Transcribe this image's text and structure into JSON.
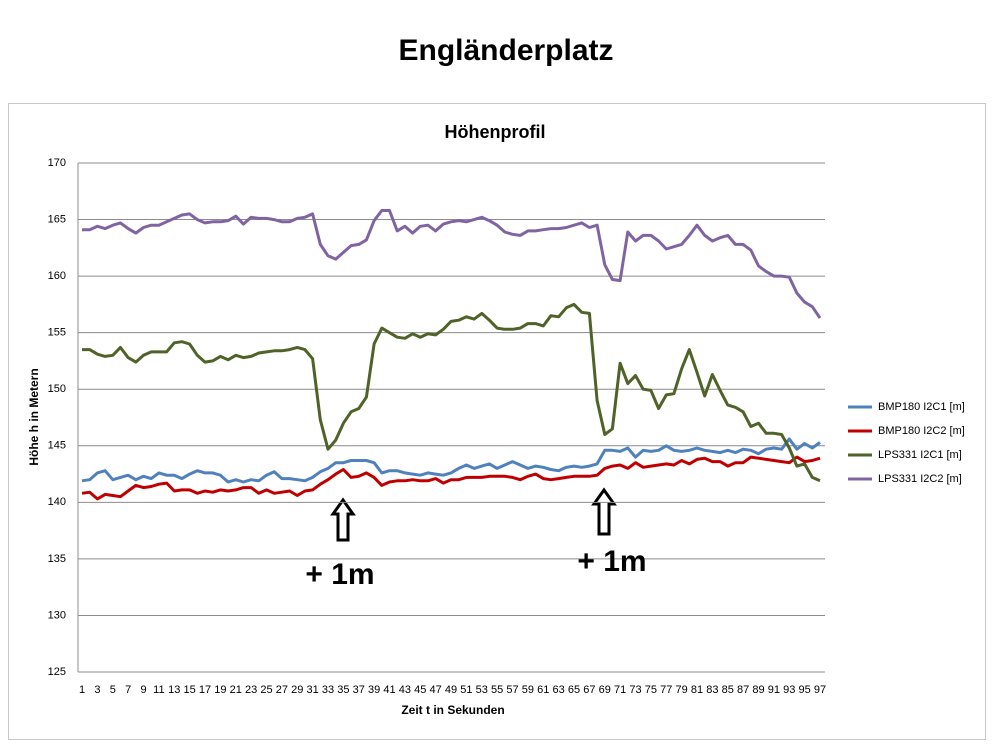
{
  "heading": "Engländerplatz",
  "chart_data": {
    "type": "line",
    "title": "Höhenprofil",
    "x_label": "Zeit t in Sekunden",
    "y_label": "Höhe h in Metern",
    "categories": [
      1,
      null,
      3,
      null,
      5,
      null,
      7,
      null,
      9,
      null,
      11,
      null,
      13,
      null,
      15,
      null,
      17,
      null,
      19,
      null,
      21,
      null,
      23,
      null,
      25,
      null,
      27,
      null,
      29,
      null,
      31,
      null,
      33,
      null,
      35,
      null,
      37,
      null,
      39,
      null,
      41,
      null,
      43,
      null,
      45,
      null,
      47,
      null,
      49,
      null,
      51,
      null,
      53,
      null,
      55,
      null,
      57,
      null,
      59,
      null,
      61,
      null,
      63,
      null,
      65,
      null,
      67,
      null,
      69,
      null,
      71,
      null,
      73,
      null,
      75,
      null,
      77,
      null,
      79,
      null,
      81,
      null,
      83,
      null,
      85,
      null,
      87,
      null,
      89,
      null,
      91,
      null,
      93,
      null,
      95,
      null,
      97
    ],
    "series": [
      {
        "name": "BMP180 I2C1 [m]",
        "color": "#4f81bd",
        "values": [
          141.9,
          142.0,
          142.6,
          142.8,
          142.0,
          142.2,
          142.4,
          142.0,
          142.3,
          142.1,
          142.6,
          142.4,
          142.4,
          142.1,
          142.5,
          142.8,
          142.6,
          142.6,
          142.4,
          141.8,
          142.0,
          141.8,
          142.0,
          141.9,
          142.4,
          142.7,
          142.1,
          142.1,
          142.0,
          141.9,
          142.2,
          142.7,
          143.0,
          143.5,
          143.5,
          143.7,
          143.7,
          143.7,
          143.5,
          142.6,
          142.8,
          142.8,
          142.6,
          142.5,
          142.4,
          142.6,
          142.5,
          142.4,
          142.6,
          143.0,
          143.3,
          143.0,
          143.2,
          143.4,
          143.0,
          143.3,
          143.6,
          143.3,
          143.0,
          143.2,
          143.1,
          142.9,
          142.8,
          143.1,
          143.2,
          143.1,
          143.2,
          143.4,
          144.6,
          144.6,
          144.5,
          144.8,
          144.0,
          144.6,
          144.5,
          144.6,
          145.0,
          144.6,
          144.5,
          144.6,
          144.8,
          144.6,
          144.5,
          144.4,
          144.6,
          144.4,
          144.7,
          144.6,
          144.3,
          144.7,
          144.8,
          144.7,
          145.6,
          144.7,
          145.2,
          144.8,
          145.3
        ]
      },
      {
        "name": "BMP180 I2C2 [m]",
        "color": "#c00000",
        "values": [
          140.8,
          140.9,
          140.3,
          140.7,
          140.6,
          140.5,
          141.0,
          141.5,
          141.3,
          141.4,
          141.6,
          141.7,
          141.0,
          141.1,
          141.1,
          140.8,
          141.0,
          140.9,
          141.1,
          141.0,
          141.1,
          141.3,
          141.3,
          140.8,
          141.1,
          140.8,
          140.9,
          141.0,
          140.6,
          141.0,
          141.1,
          141.6,
          142.0,
          142.5,
          142.9,
          142.2,
          142.3,
          142.6,
          142.2,
          141.5,
          141.8,
          141.9,
          141.9,
          142.0,
          141.9,
          141.9,
          142.1,
          141.7,
          142.0,
          142.0,
          142.2,
          142.2,
          142.2,
          142.3,
          142.3,
          142.3,
          142.2,
          142.0,
          142.3,
          142.5,
          142.1,
          142.0,
          142.1,
          142.2,
          142.3,
          142.3,
          142.3,
          142.4,
          143.0,
          143.2,
          143.3,
          143.0,
          143.5,
          143.1,
          143.2,
          143.3,
          143.4,
          143.3,
          143.7,
          143.4,
          143.8,
          143.9,
          143.6,
          143.6,
          143.2,
          143.5,
          143.5,
          144.0,
          143.9,
          143.8,
          143.7,
          143.6,
          143.5,
          144.0,
          143.6,
          143.7,
          143.9
        ]
      },
      {
        "name": "LPS331 I2C1 [m]",
        "color": "#4f6228",
        "values": [
          153.5,
          153.5,
          153.1,
          152.9,
          153.0,
          153.7,
          152.8,
          152.4,
          153.0,
          153.3,
          153.3,
          153.3,
          154.1,
          154.2,
          154.0,
          153.0,
          152.4,
          152.5,
          152.9,
          152.6,
          153.0,
          152.8,
          152.9,
          153.2,
          153.3,
          153.4,
          153.4,
          153.5,
          153.7,
          153.5,
          152.7,
          147.3,
          144.7,
          145.5,
          147.0,
          148.0,
          148.3,
          149.3,
          154.0,
          155.4,
          155.0,
          154.6,
          154.5,
          154.9,
          154.6,
          154.9,
          154.8,
          155.3,
          156.0,
          156.1,
          156.4,
          156.2,
          156.7,
          156.1,
          155.4,
          155.3,
          155.3,
          155.4,
          155.8,
          155.8,
          155.6,
          156.5,
          156.4,
          157.2,
          157.5,
          156.8,
          156.7,
          149.0,
          146.0,
          146.5,
          152.3,
          150.5,
          151.2,
          150.0,
          149.9,
          148.3,
          149.5,
          149.6,
          151.8,
          153.5,
          151.5,
          149.4,
          151.3,
          149.9,
          148.6,
          148.4,
          148.0,
          146.7,
          147.0,
          146.1,
          146.1,
          146.0,
          144.8,
          143.2,
          143.4,
          142.2,
          141.9
        ]
      },
      {
        "name": "LPS331 I2C2 [m]",
        "color": "#8064a2",
        "values": [
          164.1,
          164.1,
          164.4,
          164.2,
          164.5,
          164.7,
          164.2,
          163.8,
          164.3,
          164.5,
          164.5,
          164.8,
          165.1,
          165.4,
          165.5,
          165.0,
          164.7,
          164.8,
          164.8,
          164.9,
          165.3,
          164.6,
          165.2,
          165.1,
          165.1,
          165.0,
          164.8,
          164.8,
          165.1,
          165.2,
          165.5,
          162.8,
          161.8,
          161.5,
          162.1,
          162.7,
          162.8,
          163.2,
          164.9,
          165.8,
          165.8,
          164.0,
          164.4,
          163.8,
          164.4,
          164.5,
          164.0,
          164.6,
          164.8,
          164.9,
          164.8,
          165.0,
          165.2,
          164.9,
          164.5,
          163.9,
          163.7,
          163.6,
          164.0,
          164.0,
          164.1,
          164.2,
          164.2,
          164.3,
          164.5,
          164.7,
          164.3,
          164.5,
          161.0,
          159.7,
          159.6,
          163.9,
          163.1,
          163.6,
          163.6,
          163.1,
          162.4,
          162.6,
          162.8,
          163.6,
          164.5,
          163.6,
          163.1,
          163.4,
          163.6,
          162.8,
          162.8,
          162.3,
          160.9,
          160.4,
          160.0,
          160.0,
          159.9,
          158.5,
          157.7,
          157.3,
          156.3
        ]
      }
    ],
    "ylim": [
      125,
      170
    ],
    "yticks": [
      125,
      130,
      135,
      140,
      145,
      150,
      155,
      160,
      165,
      170
    ],
    "grid": true,
    "legend": "right",
    "annotations": [
      "+ 1m",
      "+ 1m"
    ]
  }
}
